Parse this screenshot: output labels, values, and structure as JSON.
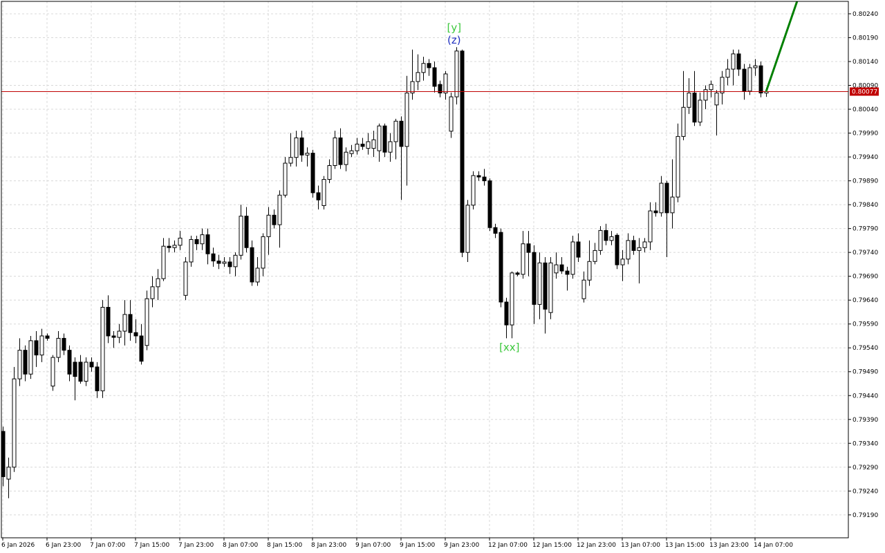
{
  "chart_data": {
    "type": "candlestick",
    "open": [
      0.79365,
      0.79265,
      0.7929,
      0.79475,
      0.79535,
      0.79485,
      0.79555,
      0.79525,
      0.79565,
      0.7946,
      0.7952,
      0.7956,
      0.79535,
      0.7951,
      0.7951,
      0.7947,
      0.7951,
      0.795,
      0.7945,
      0.79625,
      0.79565,
      0.79562,
      0.79575,
      0.7961,
      0.79572,
      0.79565,
      0.79545,
      0.79643,
      0.79668,
      0.79685,
      0.79753,
      0.7975,
      0.79755,
      0.7965,
      0.7972,
      0.79767,
      0.79758,
      0.79777,
      0.79737,
      0.79722,
      0.79717,
      0.7972,
      0.7971,
      0.79734,
      0.79816,
      0.7975,
      0.79678,
      0.79707,
      0.79773,
      0.79818,
      0.79798,
      0.7986,
      0.79927,
      0.79939,
      0.7998,
      0.79944,
      0.79948,
      0.79865,
      0.79838,
      0.79893,
      0.79922,
      0.7998,
      0.79924,
      0.79947,
      0.79953,
      0.79967,
      0.79958,
      0.79958,
      0.79953,
      0.80005,
      0.7995,
      0.79972,
      0.80015,
      0.79962,
      0.80074,
      0.80098,
      0.80117,
      0.80136,
      0.80127,
      0.80092,
      0.80074,
      0.79994,
      0.80066,
      0.80162,
      0.7974,
      0.79839,
      0.79901,
      0.79898,
      0.7989,
      0.79792,
      0.79782,
      0.79636,
      0.79588,
      0.79697,
      0.79694,
      0.79758,
      0.7974,
      0.79631,
      0.79718,
      0.79614,
      0.79697,
      0.79714,
      0.79701,
      0.79694,
      0.79762,
      0.79643,
      0.79682,
      0.79721,
      0.79744,
      0.79786,
      0.79765,
      0.79776,
      0.79714,
      0.79726,
      0.79765,
      0.79744,
      0.7975,
      0.79762,
      0.79827,
      0.79823,
      0.79885,
      0.79823,
      0.79856,
      0.79983,
      0.80044,
      0.80074,
      0.80013,
      0.80059,
      0.80081,
      0.80049,
      0.80074,
      0.80107,
      0.80124,
      0.80156,
      0.80124,
      0.80078,
      0.80127,
      0.80131,
      0.80074
    ],
    "high": [
      0.79375,
      0.7931,
      0.795,
      0.7956,
      0.79545,
      0.79565,
      0.79575,
      0.7958,
      0.7957,
      0.79525,
      0.79575,
      0.7957,
      0.79545,
      0.7952,
      0.79525,
      0.7952,
      0.7952,
      0.7951,
      0.7964,
      0.7965,
      0.79575,
      0.7959,
      0.7964,
      0.7964,
      0.796,
      0.7959,
      0.7966,
      0.7969,
      0.79705,
      0.7977,
      0.7977,
      0.79765,
      0.79785,
      0.7973,
      0.79775,
      0.79775,
      0.7979,
      0.7979,
      0.7975,
      0.79735,
      0.7973,
      0.7973,
      0.7974,
      0.7984,
      0.79835,
      0.79765,
      0.7973,
      0.7978,
      0.79835,
      0.7983,
      0.7987,
      0.7994,
      0.7999,
      0.79995,
      0.79995,
      0.7996,
      0.79955,
      0.7988,
      0.799,
      0.79935,
      0.79995,
      0.8,
      0.7996,
      0.79965,
      0.7998,
      0.7998,
      0.7999,
      0.79995,
      0.8001,
      0.8001,
      0.7999,
      0.8002,
      0.80025,
      0.8011,
      0.80165,
      0.80155,
      0.8015,
      0.80145,
      0.8014,
      0.801,
      0.8012,
      0.80075,
      0.8017,
      0.80165,
      0.7985,
      0.7991,
      0.7991,
      0.79915,
      0.79895,
      0.798,
      0.7979,
      0.79645,
      0.797,
      0.797,
      0.79785,
      0.79785,
      0.79755,
      0.7974,
      0.7973,
      0.7973,
      0.7974,
      0.7973,
      0.7971,
      0.79775,
      0.7978,
      0.797,
      0.79765,
      0.7976,
      0.79795,
      0.798,
      0.79785,
      0.7978,
      0.79745,
      0.7978,
      0.79775,
      0.7977,
      0.7977,
      0.79845,
      0.79845,
      0.799,
      0.7989,
      0.79935,
      0.8001,
      0.8012,
      0.80105,
      0.8012,
      0.80075,
      0.8009,
      0.801,
      0.8008,
      0.8012,
      0.80145,
      0.80165,
      0.80165,
      0.80135,
      0.80135,
      0.80145,
      0.8014,
      0.80085
    ],
    "low": [
      0.7925,
      0.79225,
      0.7928,
      0.7946,
      0.7947,
      0.79475,
      0.795,
      0.7951,
      0.79555,
      0.7945,
      0.7951,
      0.79525,
      0.7947,
      0.7943,
      0.79465,
      0.7946,
      0.7949,
      0.79435,
      0.79435,
      0.7955,
      0.7954,
      0.7955,
      0.79545,
      0.79555,
      0.7955,
      0.79505,
      0.79535,
      0.79625,
      0.7964,
      0.7968,
      0.7974,
      0.7974,
      0.79745,
      0.7964,
      0.7971,
      0.79745,
      0.79745,
      0.79715,
      0.7971,
      0.79705,
      0.7971,
      0.79695,
      0.7969,
      0.79725,
      0.7974,
      0.7967,
      0.7967,
      0.7969,
      0.79735,
      0.7979,
      0.7975,
      0.79855,
      0.7992,
      0.7992,
      0.7993,
      0.7992,
      0.79855,
      0.7983,
      0.7983,
      0.79885,
      0.79915,
      0.79915,
      0.7991,
      0.7994,
      0.79945,
      0.79955,
      0.79945,
      0.7994,
      0.7993,
      0.7994,
      0.7993,
      0.79935,
      0.7985,
      0.7988,
      0.8006,
      0.8008,
      0.801,
      0.8011,
      0.80075,
      0.80065,
      0.8006,
      0.7998,
      0.8005,
      0.7973,
      0.7972,
      0.7983,
      0.7989,
      0.7988,
      0.79785,
      0.7977,
      0.79625,
      0.7956,
      0.7956,
      0.7969,
      0.79685,
      0.7969,
      0.7959,
      0.796,
      0.7957,
      0.796,
      0.79685,
      0.79695,
      0.7966,
      0.79685,
      0.7972,
      0.79635,
      0.7967,
      0.79715,
      0.79735,
      0.79755,
      0.79755,
      0.79705,
      0.7968,
      0.79715,
      0.79735,
      0.79675,
      0.7974,
      0.79745,
      0.79815,
      0.79815,
      0.7973,
      0.7979,
      0.79845,
      0.79975,
      0.8003,
      0.80005,
      0.80005,
      0.8004,
      0.80065,
      0.79985,
      0.8005,
      0.8009,
      0.8009,
      0.8011,
      0.8006,
      0.8007,
      0.8011,
      0.80065,
      0.80066
    ],
    "close": [
      0.7927,
      0.7929,
      0.79475,
      0.79535,
      0.79485,
      0.79555,
      0.79525,
      0.79565,
      0.7956,
      0.7952,
      0.7956,
      0.79535,
      0.79485,
      0.7948,
      0.7947,
      0.7951,
      0.795,
      0.7945,
      0.79625,
      0.79565,
      0.79562,
      0.79575,
      0.7961,
      0.79572,
      0.79565,
      0.79512,
      0.79643,
      0.79668,
      0.79685,
      0.79753,
      0.7975,
      0.79755,
      0.7977,
      0.7972,
      0.79767,
      0.79758,
      0.79777,
      0.79737,
      0.79722,
      0.79717,
      0.7972,
      0.7971,
      0.79734,
      0.79816,
      0.7975,
      0.79678,
      0.79707,
      0.79773,
      0.79818,
      0.79798,
      0.7986,
      0.79927,
      0.79939,
      0.7998,
      0.79944,
      0.79948,
      0.79865,
      0.7985,
      0.79893,
      0.79922,
      0.7998,
      0.79924,
      0.7995,
      0.79953,
      0.79967,
      0.79962,
      0.79972,
      0.79976,
      0.80005,
      0.7995,
      0.79972,
      0.80015,
      0.79962,
      0.80074,
      0.80098,
      0.80117,
      0.80136,
      0.80127,
      0.80088,
      0.80074,
      0.80114,
      0.80066,
      0.80162,
      0.7974,
      0.79839,
      0.79901,
      0.79898,
      0.7989,
      0.79792,
      0.7978,
      0.79636,
      0.79588,
      0.79697,
      0.79694,
      0.79758,
      0.7974,
      0.79631,
      0.79718,
      0.79621,
      0.79718,
      0.79714,
      0.79701,
      0.79694,
      0.79762,
      0.7973,
      0.79682,
      0.79721,
      0.79744,
      0.79786,
      0.79765,
      0.79773,
      0.79714,
      0.79726,
      0.79765,
      0.79744,
      0.7975,
      0.79762,
      0.79827,
      0.79823,
      0.79885,
      0.79823,
      0.79856,
      0.79983,
      0.80044,
      0.80074,
      0.80013,
      0.80059,
      0.80081,
      0.80092,
      0.80074,
      0.80107,
      0.80124,
      0.80156,
      0.80124,
      0.80078,
      0.80127,
      0.80131,
      0.80074,
      0.80077
    ],
    "xlim": [
      -0.25,
      152.875
    ],
    "xticks": [
      {
        "value": 0,
        "label": "6 Jan 2026"
      },
      {
        "value": 8,
        "label": "6 Jan 23:00"
      },
      {
        "value": 16,
        "label": "7 Jan 07:00"
      },
      {
        "value": 24,
        "label": "7 Jan 15:00"
      },
      {
        "value": 32,
        "label": "7 Jan 23:00"
      },
      {
        "value": 40,
        "label": "8 Jan 07:00"
      },
      {
        "value": 48,
        "label": "8 Jan 15:00"
      },
      {
        "value": 56,
        "label": "8 Jan 23:00"
      },
      {
        "value": 64,
        "label": "9 Jan 07:00"
      },
      {
        "value": 72,
        "label": "9 Jan 15:00"
      },
      {
        "value": 80,
        "label": "9 Jan 23:00"
      },
      {
        "value": 88,
        "label": "12 Jan 07:00"
      },
      {
        "value": 96,
        "label": "12 Jan 15:00"
      },
      {
        "value": 104,
        "label": "12 Jan 23:00"
      },
      {
        "value": 112,
        "label": "13 Jan 07:00"
      },
      {
        "value": 120,
        "label": "13 Jan 15:00"
      },
      {
        "value": 128,
        "label": "13 Jan 23:00"
      },
      {
        "value": 136,
        "label": "14 Jan 07:00"
      }
    ],
    "ylim": [
      0.79142,
      0.80266
    ],
    "yticks": [
      {
        "value": 0.8024,
        "label": "0.80240"
      },
      {
        "value": 0.8019,
        "label": "0.80190"
      },
      {
        "value": 0.8014,
        "label": "0.80140"
      },
      {
        "value": 0.8009,
        "label": "0.80090"
      },
      {
        "value": 0.8004,
        "label": "0.80040"
      },
      {
        "value": 0.7999,
        "label": "0.79990"
      },
      {
        "value": 0.7994,
        "label": "0.79940"
      },
      {
        "value": 0.7989,
        "label": "0.79890"
      },
      {
        "value": 0.7984,
        "label": "0.79840"
      },
      {
        "value": 0.7979,
        "label": "0.79790"
      },
      {
        "value": 0.7974,
        "label": "0.79740"
      },
      {
        "value": 0.7969,
        "label": "0.79690"
      },
      {
        "value": 0.7964,
        "label": "0.79640"
      },
      {
        "value": 0.7959,
        "label": "0.79590"
      },
      {
        "value": 0.7954,
        "label": "0.79540"
      },
      {
        "value": 0.7949,
        "label": "0.79490"
      },
      {
        "value": 0.7944,
        "label": "0.79440"
      },
      {
        "value": 0.7939,
        "label": "0.79390"
      },
      {
        "value": 0.7934,
        "label": "0.79340"
      },
      {
        "value": 0.7929,
        "label": "0.79290"
      },
      {
        "value": 0.7924,
        "label": "0.79240"
      },
      {
        "value": 0.7919,
        "label": "0.79190"
      }
    ],
    "grid": true,
    "up_color": "#ffffff",
    "down_color": "#000000",
    "current_price": 0.80077,
    "current_price_color": "#c00000",
    "forecast": {
      "x": [
        138,
        143.6
      ],
      "values": [
        0.80077,
        0.80266
      ],
      "color": "#008000"
    },
    "annotations": [
      {
        "text": "[y]",
        "x": 81.6,
        "y": 0.80211,
        "color": "#3cc83c"
      },
      {
        "text": "(z)",
        "x": 81.6,
        "y": 0.80185,
        "color": "#2030c0"
      },
      {
        "text": "[xx]",
        "x": 91.6,
        "y": 0.79541,
        "color": "#3cc83c"
      }
    ]
  }
}
